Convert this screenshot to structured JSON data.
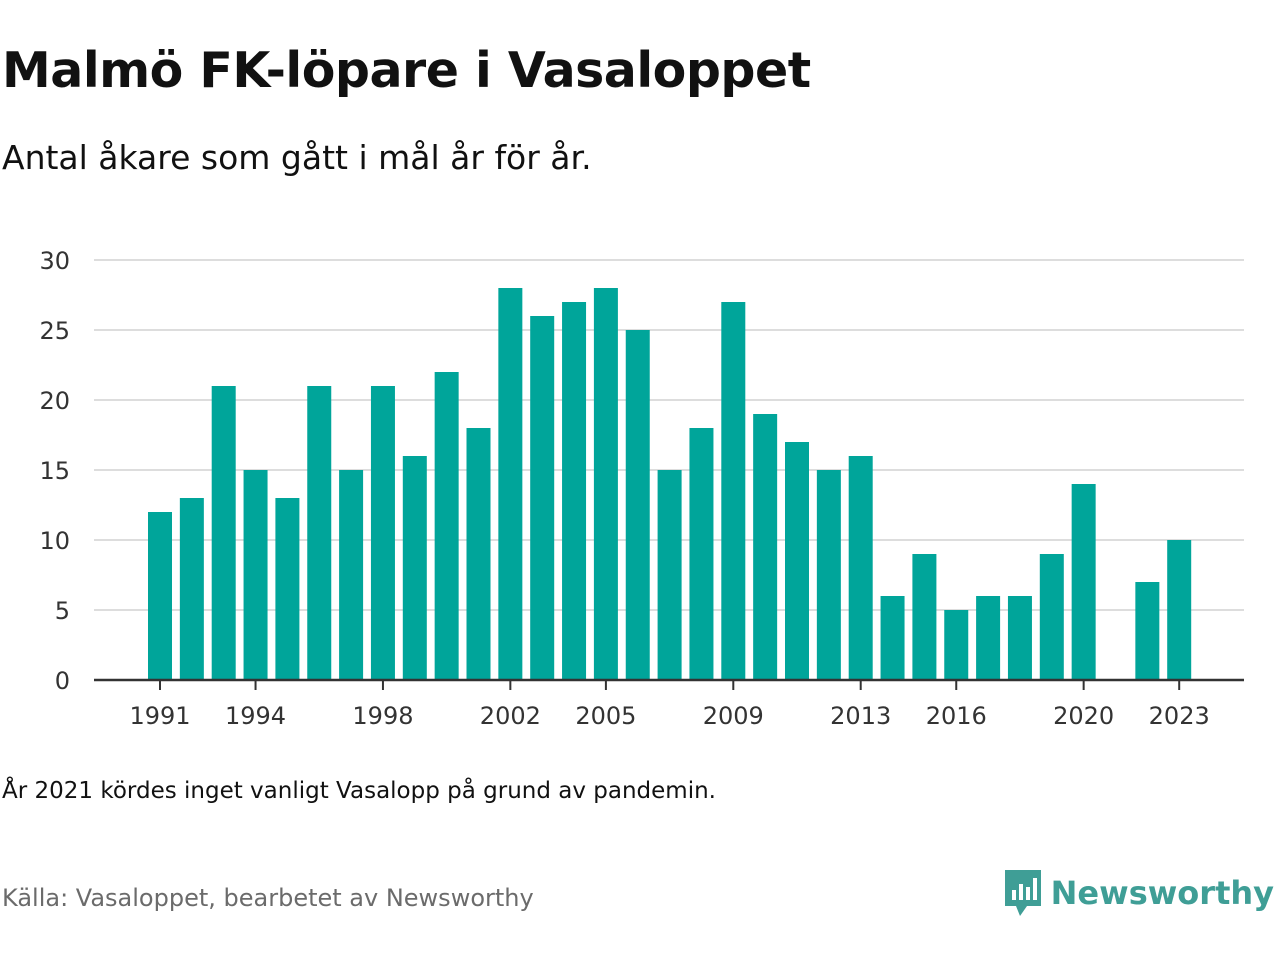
{
  "header": {
    "title": "Malmö FK-löpare i Vasaloppet",
    "subtitle": "Antal åkare som gått i mål år för år."
  },
  "footer": {
    "note": "År 2021 kördes inget vanligt Vasalopp på grund av pandemin.",
    "source": "Källa: Vasaloppet, bearbetet av Newsworthy",
    "brand": "Newsworthy"
  },
  "colors": {
    "bar": "#00a59a",
    "grid": "#dddddd",
    "axis": "#333333",
    "brand": "#3f9e96"
  },
  "chart_data": {
    "type": "bar",
    "title": "Malmö FK-löpare i Vasaloppet",
    "subtitle": "Antal åkare som gått i mål år för år.",
    "categories": [
      1991,
      1992,
      1993,
      1994,
      1995,
      1996,
      1997,
      1998,
      1999,
      2000,
      2001,
      2002,
      2003,
      2004,
      2005,
      2006,
      2007,
      2008,
      2009,
      2010,
      2011,
      2012,
      2013,
      2014,
      2015,
      2016,
      2017,
      2018,
      2019,
      2020,
      2021,
      2022,
      2023
    ],
    "values": [
      12,
      13,
      21,
      15,
      13,
      21,
      15,
      21,
      16,
      22,
      18,
      28,
      26,
      27,
      28,
      25,
      15,
      18,
      27,
      19,
      17,
      15,
      16,
      6,
      9,
      5,
      6,
      6,
      9,
      14,
      null,
      7,
      10
    ],
    "x_tick_labels": [
      "1991",
      "1994",
      "1998",
      "2002",
      "2005",
      "2009",
      "2013",
      "2016",
      "2020",
      "2023"
    ],
    "y_ticks": [
      0,
      5,
      10,
      15,
      20,
      25,
      30
    ],
    "ylim": [
      0,
      30
    ],
    "grid": true,
    "xlabel": "",
    "ylabel": ""
  }
}
